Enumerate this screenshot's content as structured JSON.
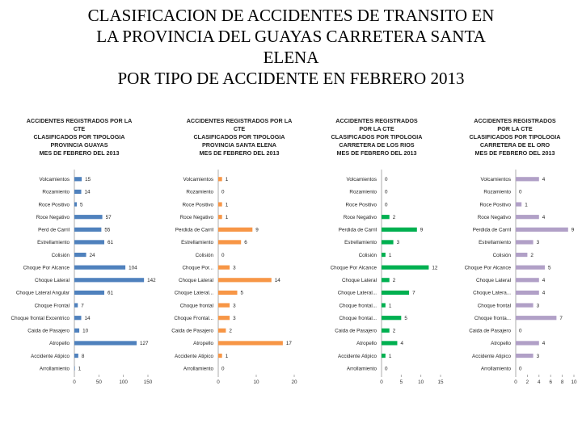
{
  "title": {
    "lines": [
      "CLASIFICACION DE ACCIDENTES DE TRANSITO EN",
      "LA PROVINCIA DEL GUAYAS CARRETERA SANTA",
      "ELENA",
      "POR TIPO DE ACCIDENTE EN FEBRERO 2013"
    ]
  },
  "chart_data": [
    {
      "type": "bar",
      "orientation": "horizontal",
      "title_lines": [
        "ACCIDENTES REGISTRADOS POR LA",
        "CTE",
        "CLASIFICADOS POR TIPOLOGIA",
        "PROVINCIA GUAYAS",
        "MES DE FEBRERO DEL 2013"
      ],
      "color": "#4f81bd",
      "categories": [
        "Volcamientos",
        "Rozamiento",
        "Roce Positivo",
        "Roce Negativo",
        "Perd de Carril",
        "Estrellamiento",
        "Colisión",
        "Choque Por Alcance",
        "Choque Lateral",
        "Choque Lateral Angular",
        "Choque Frontal",
        "Choque frontal Excentrico",
        "Caida de Pasajero",
        "Atropello",
        "Accidente Atipico",
        "Arrollamiento"
      ],
      "values": [
        15,
        14,
        5,
        57,
        55,
        61,
        24,
        104,
        142,
        61,
        7,
        14,
        10,
        127,
        8,
        1
      ],
      "xlim": [
        0,
        150
      ],
      "xticks": [
        "0",
        "50",
        "100",
        "150"
      ]
    },
    {
      "type": "bar",
      "orientation": "horizontal",
      "title_lines": [
        "ACCIDENTES REGISTRADOS POR LA",
        "CTE",
        "CLASIFICADOS POR TIPOLOGIA",
        "PROVINCIA SANTA ELENA",
        "MES DE FEBRERO DEL 2013"
      ],
      "color": "#f79646",
      "categories": [
        "Volcamientos",
        "Rozamiento",
        "Roce Positivo",
        "Roce Negativo",
        "Perdida de Carril",
        "Estrellamiento",
        "Colisión",
        "Choque Por...",
        "Choque Lateral",
        "Choque Lateral...",
        "Choque frontal",
        "Choque Frontal...",
        "Caida de Pasajero",
        "Atropello",
        "Accidente Atipico",
        "Arrollamiento"
      ],
      "values": [
        1,
        0,
        1,
        1,
        9,
        6,
        0,
        3,
        14,
        5,
        3,
        3,
        2,
        17,
        1,
        0
      ],
      "xlim": [
        0,
        20
      ],
      "xticks": [
        "0",
        "10",
        "20"
      ]
    },
    {
      "type": "bar",
      "orientation": "horizontal",
      "title_lines": [
        "ACCIDENTES REGISTRADOS",
        "POR LA CTE",
        "CLASIFICADOS POR TIPOLOGIA",
        "CARRETERA DE LOS RIOS",
        "MES DE FEBRERO DEL 2013"
      ],
      "color": "#00b050",
      "categories": [
        "Volcamientos",
        "Rozamiento",
        "Roce Positivo",
        "Roce Negativo",
        "Perdida de Carril",
        "Estrellamiento",
        "Colisión",
        "Choque Por Alcance",
        "Choque Lateral",
        "Choque Lateral...",
        "Choque frontal...",
        "Choque frontal...",
        "Caida de Pasajero",
        "Atropello",
        "Accidente Atipico",
        "Arrollamiento"
      ],
      "values": [
        0,
        0,
        0,
        2,
        9,
        3,
        1,
        12,
        2,
        7,
        1,
        5,
        2,
        4,
        1,
        0
      ],
      "xlim": [
        0,
        15
      ],
      "xticks": [
        "0",
        "5",
        "10",
        "15"
      ]
    },
    {
      "type": "bar",
      "orientation": "horizontal",
      "title_lines": [
        "ACCIDENTES REGISTRADOS",
        "POR LA CTE",
        "CLASIFICADOS POR TIPOLOGIA",
        "CARRETERA DE EL ORO",
        "MES DE FEBRERO DEL 2013"
      ],
      "color": "#b1a0c7",
      "categories": [
        "Volcamientos",
        "Rozamiento",
        "Roce Positivo",
        "Roce Negativo",
        "Perdida de Carril",
        "Estrellamiento",
        "Colisión",
        "Choque Por Alcance",
        "Choque Lateral",
        "Choque Latera...",
        "Choque frontal",
        "Choque fronta...",
        "Caida de Pasajero",
        "Atropello",
        "Accidente Atipico",
        "Arrollamiento"
      ],
      "values": [
        4,
        0,
        1,
        4,
        9,
        3,
        2,
        5,
        4,
        4,
        3,
        7,
        0,
        4,
        3,
        0
      ],
      "xlim": [
        0,
        10
      ],
      "xticks": [
        "0",
        "2",
        "4",
        "6",
        "8",
        "10"
      ]
    }
  ]
}
